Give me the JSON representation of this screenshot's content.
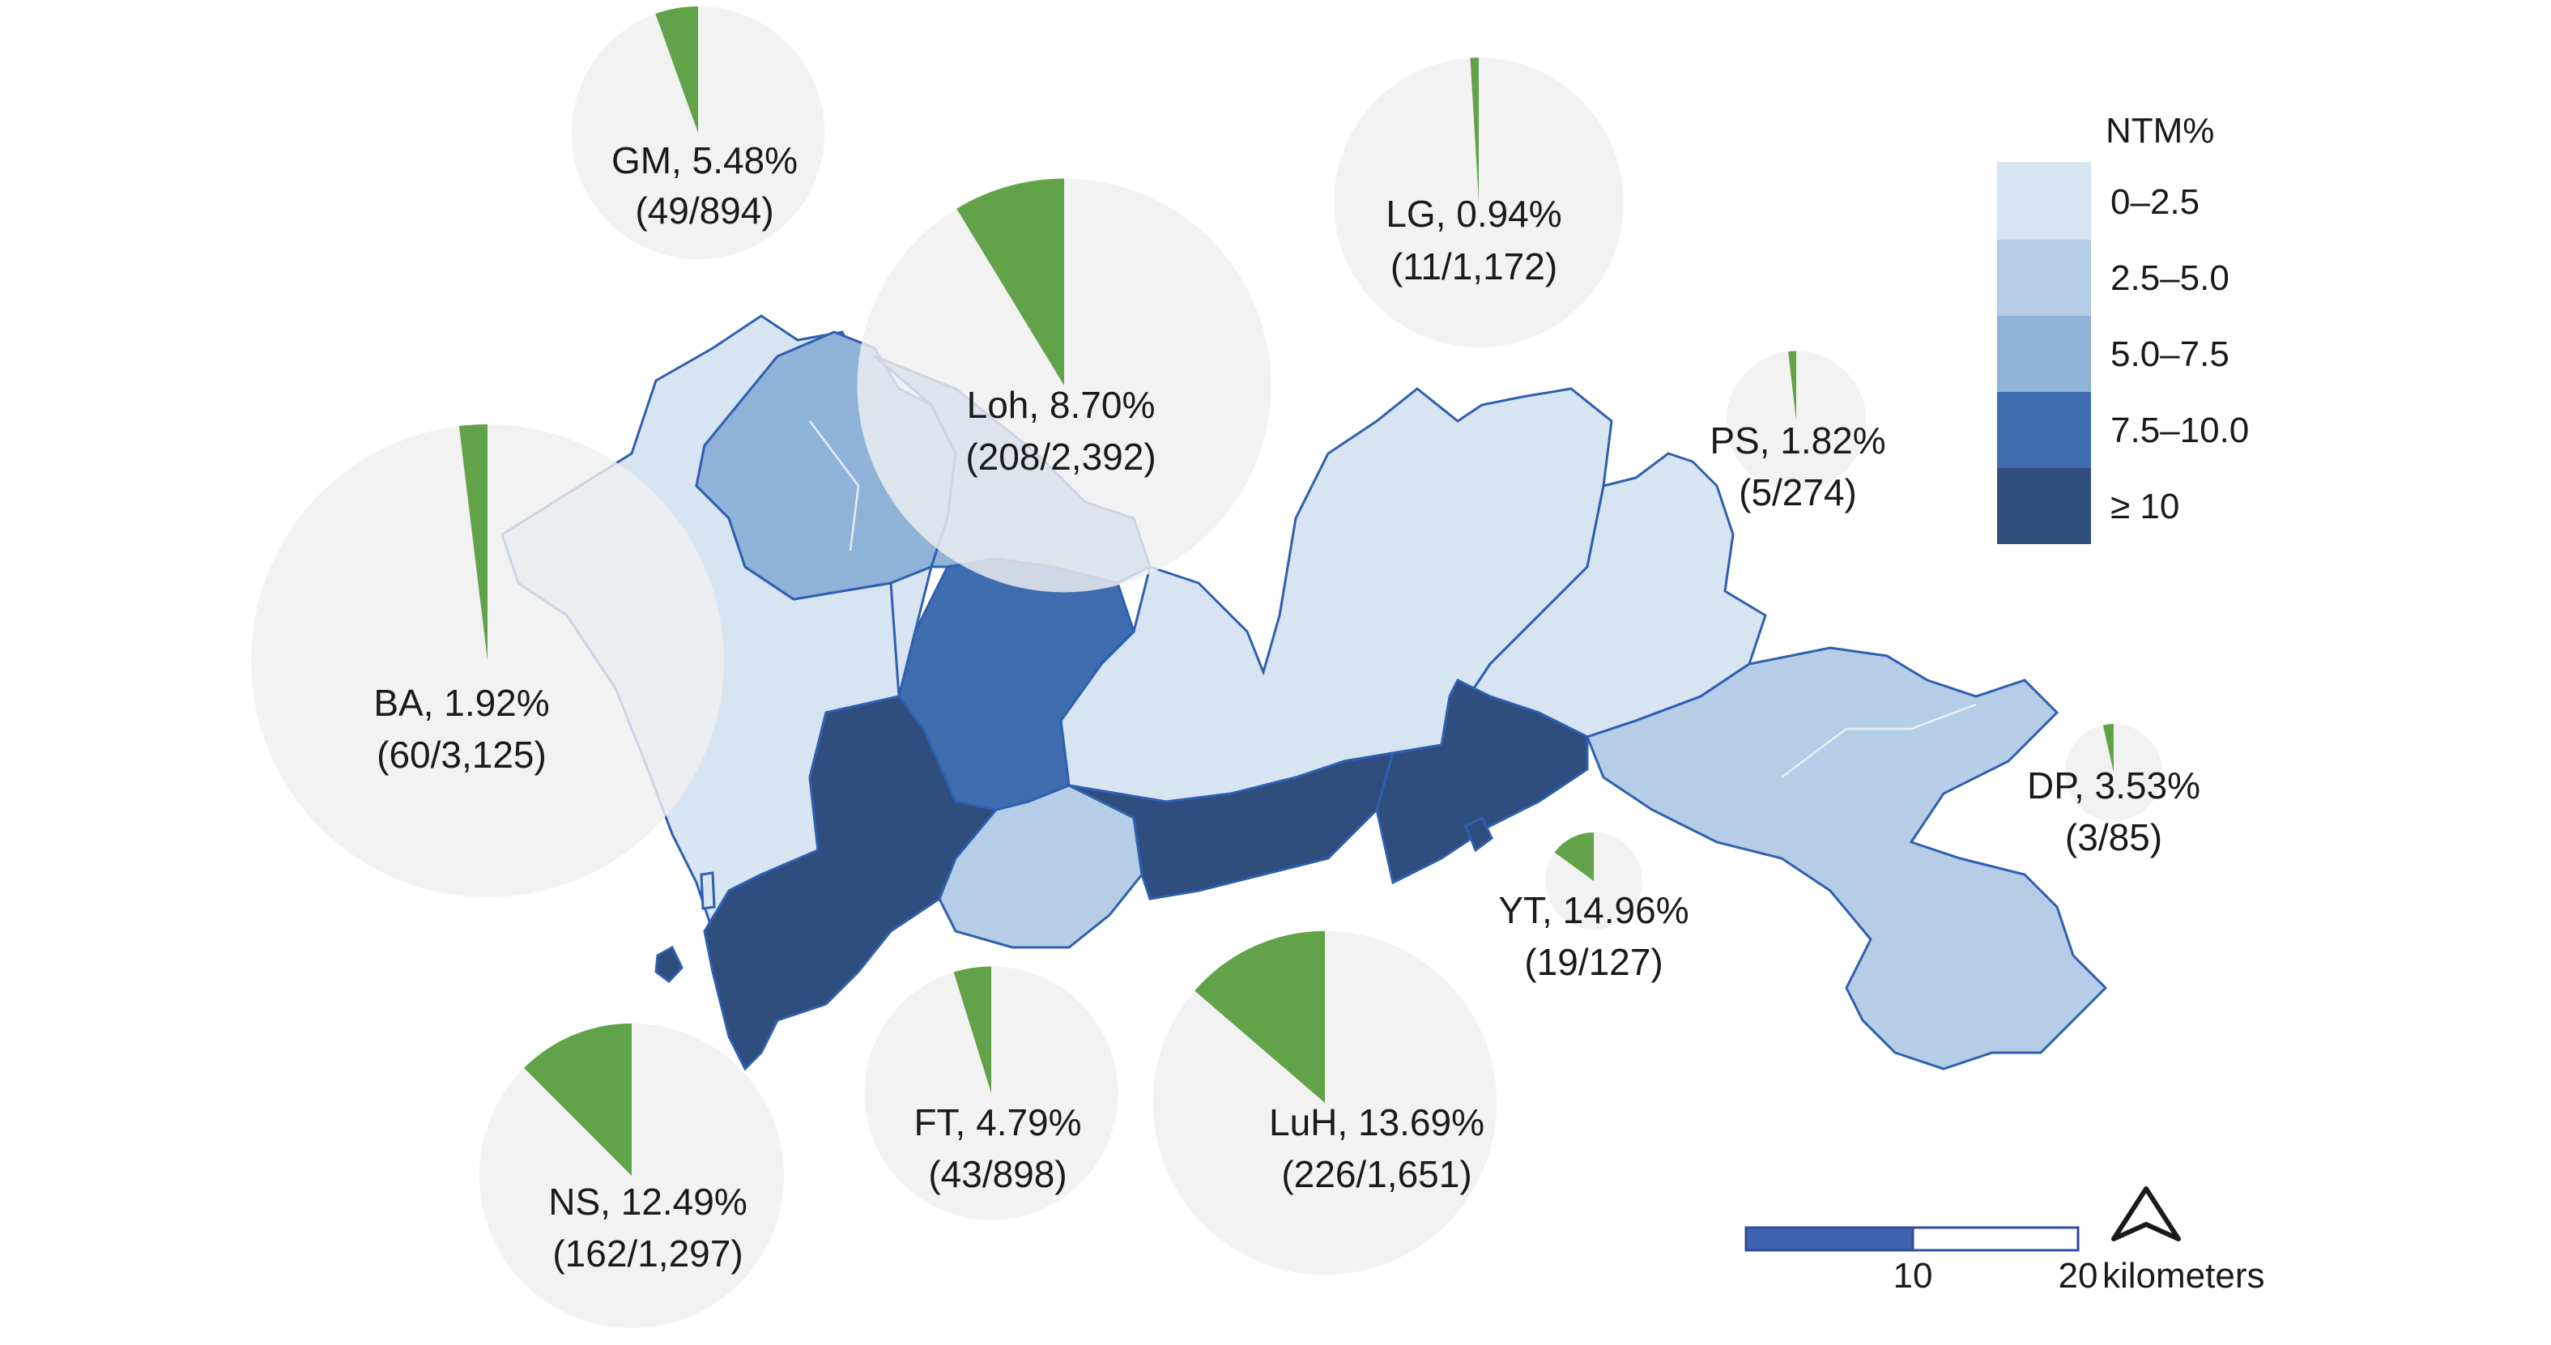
{
  "colors": {
    "class_0_2_5": "#d7e4f2",
    "class_2_5_5": "#b5cde6",
    "class_5_7_5": "#8fb2d9",
    "class_7_5_10": "#3f6db0",
    "class_ge_10": "#2f4d7d",
    "pie_background": "#efefef",
    "pie_slice": "#62a34a",
    "border": "#2f5fb0"
  },
  "legend": {
    "title": "NTM%",
    "classes": [
      {
        "label": "0–2.5",
        "color": "#d7e4f2"
      },
      {
        "label": "2.5–5.0",
        "color": "#b5cde6"
      },
      {
        "label": "5.0–7.5",
        "color": "#8fb2d9"
      },
      {
        "label": "7.5–10.0",
        "color": "#3f6db0"
      },
      {
        "label": "≥ 10",
        "color": "#2f4d7d"
      }
    ]
  },
  "districts": [
    {
      "code": "GM",
      "label": "GM, 5.48%",
      "counts": "(49/894)",
      "percent": 5.48,
      "positive": 49,
      "total": 894
    },
    {
      "code": "Loh",
      "label": "Loh, 8.70%",
      "counts": "(208/2,392)",
      "percent": 8.7,
      "positive": 208,
      "total": 2392
    },
    {
      "code": "LG",
      "label": "LG, 0.94%",
      "counts": "(11/1,172)",
      "percent": 0.94,
      "positive": 11,
      "total": 1172
    },
    {
      "code": "PS",
      "label": "PS, 1.82%",
      "counts": "(5/274)",
      "percent": 1.82,
      "positive": 5,
      "total": 274
    },
    {
      "code": "BA",
      "label": "BA, 1.92%",
      "counts": "(60/3,125)",
      "percent": 1.92,
      "positive": 60,
      "total": 3125
    },
    {
      "code": "DP",
      "label": "DP, 3.53%",
      "counts": "(3/85)",
      "percent": 3.53,
      "positive": 3,
      "total": 85
    },
    {
      "code": "YT",
      "label": "YT, 14.96%",
      "counts": "(19/127)",
      "percent": 14.96,
      "positive": 19,
      "total": 127
    },
    {
      "code": "NS",
      "label": "NS, 12.49%",
      "counts": "(162/1,297)",
      "percent": 12.49,
      "positive": 162,
      "total": 1297
    },
    {
      "code": "FT",
      "label": "FT, 4.79%",
      "counts": "(43/898)",
      "percent": 4.79,
      "positive": 43,
      "total": 898
    },
    {
      "code": "LuH",
      "label": "LuH, 13.69%",
      "counts": "(226/1,651)",
      "percent": 13.69,
      "positive": 226,
      "total": 1651
    }
  ],
  "scale_bar": {
    "ticks": [
      "10",
      "20"
    ],
    "unit": "kilometers"
  },
  "icons": {
    "north_arrow": "north-arrow-icon"
  }
}
